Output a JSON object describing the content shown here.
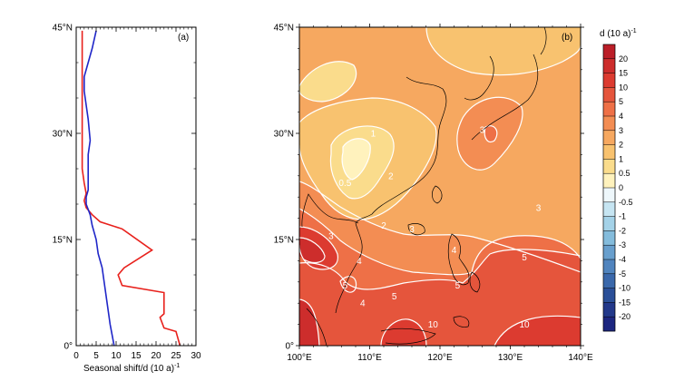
{
  "chart_data": [
    {
      "type": "line",
      "panel": "(a)",
      "xlabel": "Seasonal shift/d (10 a)",
      "xlabel_sup": "-1",
      "xlim": [
        0,
        30
      ],
      "ylim": [
        0,
        45
      ],
      "x_ticks": [
        "0",
        "5",
        "10",
        "15",
        "20",
        "25",
        "30"
      ],
      "y_ticks": [
        {
          "value": 0,
          "label": "0°"
        },
        {
          "value": 15,
          "label": "15°N"
        },
        {
          "value": 30,
          "label": "30°N"
        },
        {
          "value": 45,
          "label": "45°N"
        }
      ],
      "series": [
        {
          "color": "#e8211c",
          "points": [
            [
              26,
              0
            ],
            [
              25,
              2
            ],
            [
              22,
              2.5
            ],
            [
              21,
              4
            ],
            [
              22,
              4.5
            ],
            [
              22,
              7.5
            ],
            [
              11.5,
              8.5
            ],
            [
              10.5,
              10
            ],
            [
              12,
              11
            ],
            [
              19,
              13.5
            ],
            [
              11.5,
              16.5
            ],
            [
              6,
              17.5
            ],
            [
              4,
              18.5
            ],
            [
              2.5,
              19.5
            ],
            [
              2,
              20.5
            ],
            [
              2.5,
              21.5
            ],
            [
              2,
              23
            ],
            [
              1.5,
              25
            ],
            [
              1.5,
              30
            ],
            [
              1.5,
              35
            ],
            [
              1.5,
              40
            ],
            [
              1.5,
              44.5
            ]
          ]
        },
        {
          "color": "#1f26c8",
          "points": [
            [
              9.5,
              0
            ],
            [
              9,
              1.5
            ],
            [
              8.5,
              3
            ],
            [
              8,
              5
            ],
            [
              7.5,
              7
            ],
            [
              7,
              9
            ],
            [
              6.5,
              11
            ],
            [
              5.5,
              13
            ],
            [
              5,
              15
            ],
            [
              4,
              17
            ],
            [
              3.5,
              18.5
            ],
            [
              2.5,
              20
            ],
            [
              2.5,
              21
            ],
            [
              3,
              22
            ],
            [
              3,
              24
            ],
            [
              3,
              27
            ],
            [
              3.5,
              29
            ],
            [
              3,
              32
            ],
            [
              2.5,
              34
            ],
            [
              2,
              36
            ],
            [
              2,
              38
            ],
            [
              3,
              40
            ],
            [
              4,
              42
            ],
            [
              5,
              44.5
            ]
          ]
        }
      ]
    },
    {
      "type": "heatmap",
      "panel": "(b)",
      "xlim": [
        100,
        140
      ],
      "ylim": [
        0,
        45
      ],
      "x_ticks": [
        "100°E",
        "110°E",
        "120°E",
        "130°E",
        "140°E"
      ],
      "y_ticks": [
        "0°",
        "15°N",
        "30°N",
        "45°N"
      ],
      "contour_labels": [
        {
          "text": "1",
          "lon": 110.5,
          "lat": 30.0
        },
        {
          "text": "0.5",
          "lon": 106.5,
          "lat": 23.0
        },
        {
          "text": "2",
          "lon": 113.0,
          "lat": 24.0
        },
        {
          "text": "2",
          "lon": 112.0,
          "lat": 17.0
        },
        {
          "text": "3",
          "lon": 116.0,
          "lat": 16.5
        },
        {
          "text": "3",
          "lon": 126.0,
          "lat": 30.5
        },
        {
          "text": "3",
          "lon": 134.0,
          "lat": 19.5
        },
        {
          "text": "4",
          "lon": 122.0,
          "lat": 13.5
        },
        {
          "text": "5",
          "lon": 132.0,
          "lat": 12.5
        },
        {
          "text": "5",
          "lon": 113.5,
          "lat": 7.0
        },
        {
          "text": "4",
          "lon": 109.0,
          "lat": 6.0
        },
        {
          "text": "5",
          "lon": 106.5,
          "lat": 8.5
        },
        {
          "text": "3",
          "lon": 104.5,
          "lat": 15.5
        },
        {
          "text": "4",
          "lon": 108.5,
          "lat": 12.0
        },
        {
          "text": "10",
          "lon": 132.0,
          "lat": 3.0
        },
        {
          "text": "10",
          "lon": 119.0,
          "lat": 3.0
        },
        {
          "text": "5",
          "lon": 122.5,
          "lat": 8.5
        }
      ],
      "colorbar": {
        "title": "d (10 a)",
        "title_sup": "-1",
        "labels": [
          "20",
          "15",
          "10",
          "5",
          "4",
          "3",
          "2",
          "1",
          "0.5",
          "0",
          "-0.5",
          "-1",
          "-2",
          "-3",
          "-4",
          "-5",
          "-10",
          "-15",
          "-20"
        ],
        "colors": [
          "#bb1e28",
          "#cd2d2c",
          "#dc3b30",
          "#e5553c",
          "#ee7047",
          "#f38d53",
          "#f6a860",
          "#f8c26f",
          "#fadc8c",
          "#fff2bd",
          "#eef7fb",
          "#c6e5f2",
          "#a4d2e8",
          "#84bcdc",
          "#689fcd",
          "#5084be",
          "#3a68ab",
          "#2a4f98",
          "#22388a",
          "#1c2680"
        ]
      }
    }
  ]
}
